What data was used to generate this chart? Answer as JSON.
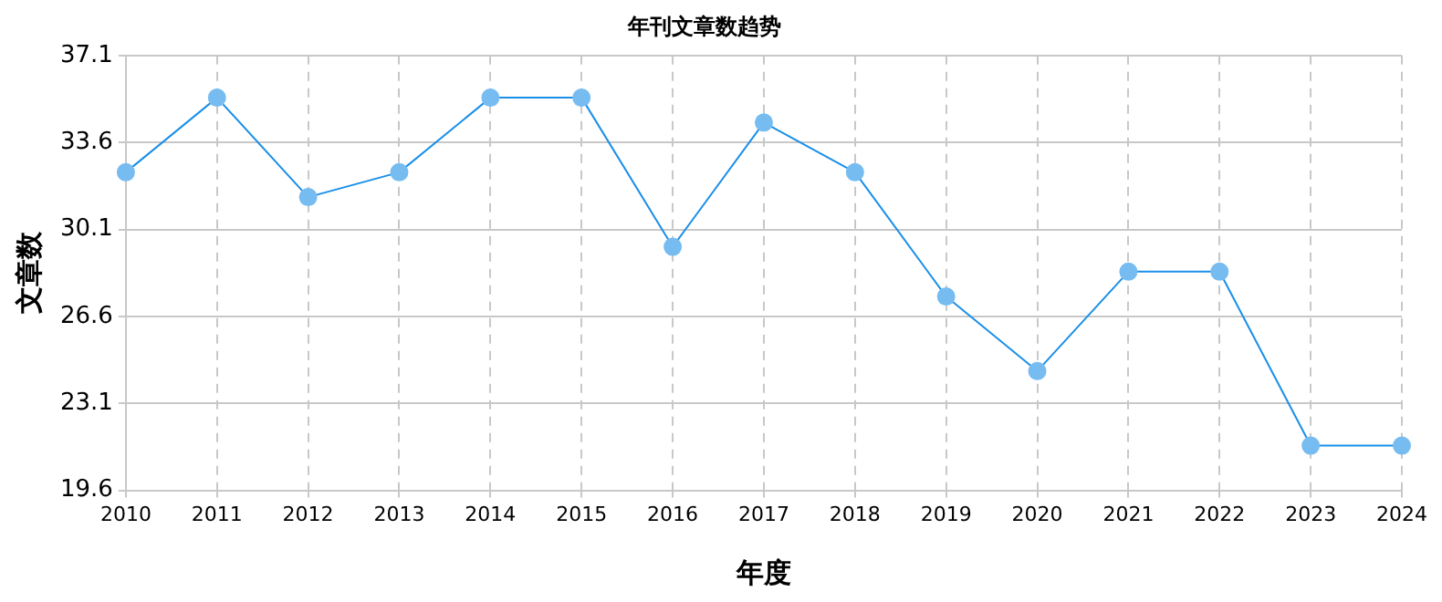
{
  "chart_data": {
    "type": "line",
    "title": "年刊文章数趋势",
    "xlabel": "年度",
    "ylabel": "文章数",
    "categories": [
      "2010",
      "2011",
      "2012",
      "2013",
      "2014",
      "2015",
      "2016",
      "2017",
      "2018",
      "2019",
      "2020",
      "2021",
      "2022",
      "2023",
      "2024"
    ],
    "series": [
      {
        "color": "#1a8fe8",
        "values": [
          32.4,
          35.4,
          31.4,
          32.4,
          35.4,
          35.4,
          29.4,
          34.4,
          32.4,
          27.4,
          24.4,
          28.4,
          28.4,
          21.4,
          21.4
        ]
      }
    ],
    "ylim": [
      19.6,
      37.1
    ],
    "yticks": [
      19.6,
      23.1,
      26.6,
      30.1,
      33.6,
      37.1
    ],
    "grid": true,
    "legend": false,
    "marker": "circle",
    "line_style": "solid"
  }
}
